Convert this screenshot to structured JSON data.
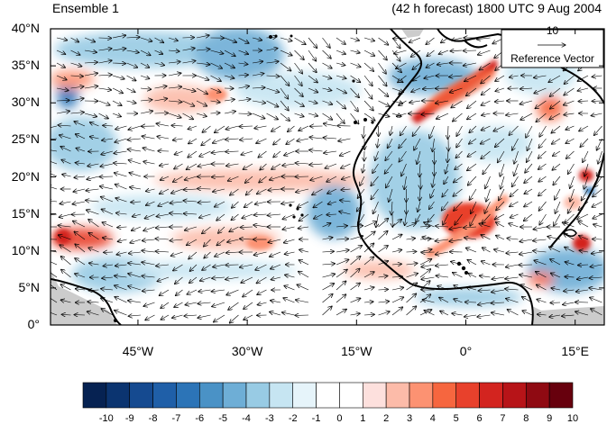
{
  "header": {
    "left_title": "Ensemble 1",
    "right_title": "(42 h forecast) 1800 UTC 9 Aug 2004"
  },
  "map": {
    "lon_range": [
      -57,
      19
    ],
    "lat_range": [
      0,
      40
    ],
    "lat_labels": [
      "0°",
      "5°N",
      "10°N",
      "15°N",
      "20°N",
      "25°N",
      "30°N",
      "35°N",
      "40°N"
    ],
    "lat_values": [
      0,
      5,
      10,
      15,
      20,
      25,
      30,
      35,
      40
    ],
    "lon_labels": [
      "45°W",
      "30°W",
      "15°W",
      "0°",
      "15°E"
    ],
    "lon_values": [
      -45,
      -30,
      -15,
      0,
      15
    ],
    "reference_vector": {
      "value": "10",
      "label": "Reference Vector"
    }
  },
  "colorbar": {
    "labels": [
      "-10",
      "-9",
      "-8",
      "-7",
      "-6",
      "-5",
      "-4",
      "-3",
      "-2",
      "-1",
      "0",
      "1",
      "2",
      "3",
      "4",
      "5",
      "6",
      "7",
      "8",
      "9",
      "10"
    ],
    "colors": [
      "#062252",
      "#0b3470",
      "#154a90",
      "#1f5fa8",
      "#2c74b7",
      "#4a92c6",
      "#6eaed6",
      "#98cbe4",
      "#c6e5f2",
      "#e6f4fa",
      "#ffffff",
      "#ffffff",
      "#fde0dd",
      "#fcbba9",
      "#fc9272",
      "#f6663f",
      "#e8412c",
      "#d3241f",
      "#b71418",
      "#8f0a12",
      "#67000d"
    ]
  },
  "colors": {
    "positive": "#e8412c",
    "negative": "#2c74b7",
    "land_mask": "#cccccc"
  }
}
